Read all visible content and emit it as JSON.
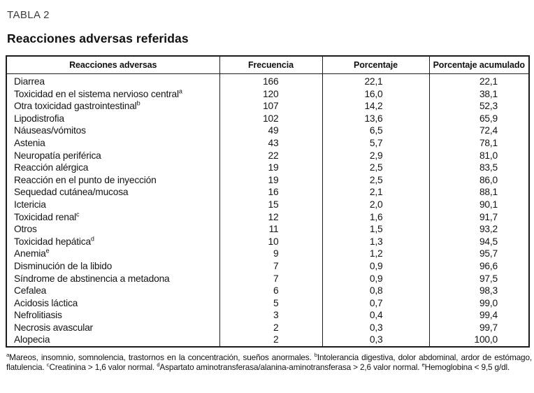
{
  "title": "TABLA 2",
  "subtitle": "Reacciones adversas referidas",
  "table": {
    "columns": [
      "Reacciones adversas",
      "Frecuencia",
      "Porcentaje",
      "Porcentaje acumulado"
    ],
    "rows": [
      {
        "label": "Diarrea",
        "sup": "",
        "freq": "166",
        "pct": "22,1",
        "cum": "22,1"
      },
      {
        "label": "Toxicidad en el sistema nervioso central",
        "sup": "a",
        "freq": "120",
        "pct": "16,0",
        "cum": "38,1"
      },
      {
        "label": "Otra toxicidad gastrointestinal",
        "sup": "b",
        "freq": "107",
        "pct": "14,2",
        "cum": "52,3"
      },
      {
        "label": "Lipodistrofia",
        "sup": "",
        "freq": "102",
        "pct": "13,6",
        "cum": "65,9"
      },
      {
        "label": "Náuseas/vómitos",
        "sup": "",
        "freq": "49",
        "pct": "6,5",
        "cum": "72,4"
      },
      {
        "label": "Astenia",
        "sup": "",
        "freq": "43",
        "pct": "5,7",
        "cum": "78,1"
      },
      {
        "label": "Neuropatía periférica",
        "sup": "",
        "freq": "22",
        "pct": "2,9",
        "cum": "81,0"
      },
      {
        "label": "Reacción alérgica",
        "sup": "",
        "freq": "19",
        "pct": "2,5",
        "cum": "83,5"
      },
      {
        "label": "Reacción en el punto de inyección",
        "sup": "",
        "freq": "19",
        "pct": "2,5",
        "cum": "86,0"
      },
      {
        "label": "Sequedad cutánea/mucosa",
        "sup": "",
        "freq": "16",
        "pct": "2,1",
        "cum": "88,1"
      },
      {
        "label": "Ictericia",
        "sup": "",
        "freq": "15",
        "pct": "2,0",
        "cum": "90,1"
      },
      {
        "label": "Toxicidad renal",
        "sup": "c",
        "freq": "12",
        "pct": "1,6",
        "cum": "91,7"
      },
      {
        "label": "Otros",
        "sup": "",
        "freq": "11",
        "pct": "1,5",
        "cum": "93,2"
      },
      {
        "label": "Toxicidad hepática",
        "sup": "d",
        "freq": "10",
        "pct": "1,3",
        "cum": "94,5"
      },
      {
        "label": "Anemia",
        "sup": "e",
        "freq": "9",
        "pct": "1,2",
        "cum": "95,7"
      },
      {
        "label": "Disminución de la libido",
        "sup": "",
        "freq": "7",
        "pct": "0,9",
        "cum": "96,6"
      },
      {
        "label": "Síndrome de abstinencia a metadona",
        "sup": "",
        "freq": "7",
        "pct": "0,9",
        "cum": "97,5"
      },
      {
        "label": "Cefalea",
        "sup": "",
        "freq": "6",
        "pct": "0,8",
        "cum": "98,3"
      },
      {
        "label": "Acidosis láctica",
        "sup": "",
        "freq": "5",
        "pct": "0,7",
        "cum": "99,0"
      },
      {
        "label": "Nefrolitiasis",
        "sup": "",
        "freq": "3",
        "pct": "0,4",
        "cum": "99,4"
      },
      {
        "label": "Necrosis avascular",
        "sup": "",
        "freq": "2",
        "pct": "0,3",
        "cum": "99,7"
      },
      {
        "label": "Alopecia",
        "sup": "",
        "freq": "2",
        "pct": "0,3",
        "cum": "100,0"
      }
    ]
  },
  "footnotes": [
    {
      "sup": "a",
      "text": "Mareos, insomnio, somnolencia, trastornos en la concentración, sueños anormales. "
    },
    {
      "sup": "b",
      "text": "Intolerancia digestiva, dolor abdominal, ardor de estómago, flatulencia. "
    },
    {
      "sup": "c",
      "text": "Creatinina > 1,6 valor normal. "
    },
    {
      "sup": "d",
      "text": "Aspartato aminotransferasa/alanina-aminotransferasa > 2,6 valor normal. "
    },
    {
      "sup": "e",
      "text": "Hemoglobina < 9,5 g/dl."
    }
  ]
}
